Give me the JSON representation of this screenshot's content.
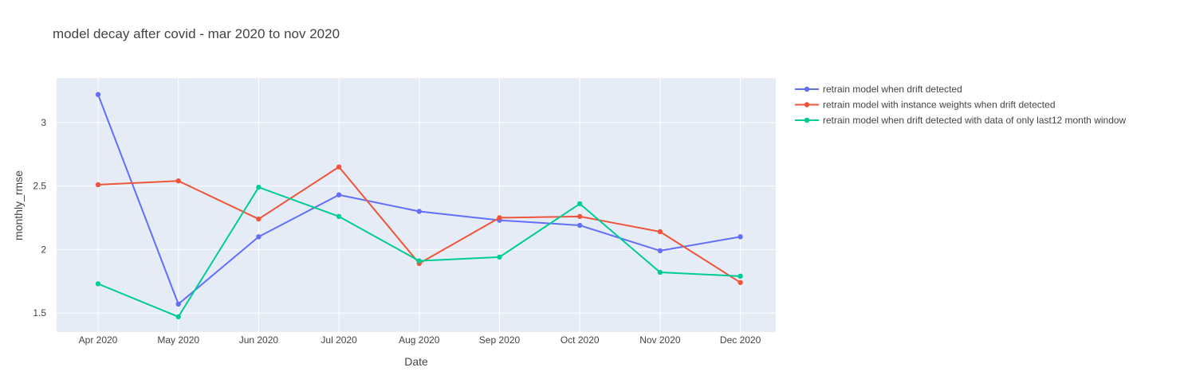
{
  "chart_data": {
    "type": "line",
    "title": "model decay after covid - mar 2020 to nov 2020",
    "xlabel": "Date",
    "ylabel": "monthly_rmse",
    "categories": [
      "Apr 2020",
      "May 2020",
      "Jun 2020",
      "Jul 2020",
      "Aug 2020",
      "Sep 2020",
      "Oct 2020",
      "Nov 2020",
      "Dec 2020"
    ],
    "yticks": [
      "1.5",
      "2",
      "2.5",
      "3"
    ],
    "ylim": [
      1.35,
      3.35
    ],
    "grid": true,
    "legend_position": "right",
    "series": [
      {
        "name": "retrain model when drift detected",
        "color": "#636efa",
        "values": [
          3.22,
          1.57,
          2.1,
          2.43,
          2.3,
          2.23,
          2.19,
          1.99,
          2.1
        ]
      },
      {
        "name": "retrain model with instance weights when drift detected",
        "color": "#EF553B",
        "values": [
          2.51,
          2.54,
          2.24,
          2.65,
          1.89,
          2.25,
          2.26,
          2.14,
          1.74
        ]
      },
      {
        "name": "retrain model when drift detected with data of only last12 month window",
        "color": "#00cc96",
        "values": [
          1.73,
          1.47,
          2.49,
          2.26,
          1.91,
          1.94,
          2.36,
          1.82,
          1.79
        ]
      }
    ],
    "plot_background": "#e5ecf6"
  }
}
